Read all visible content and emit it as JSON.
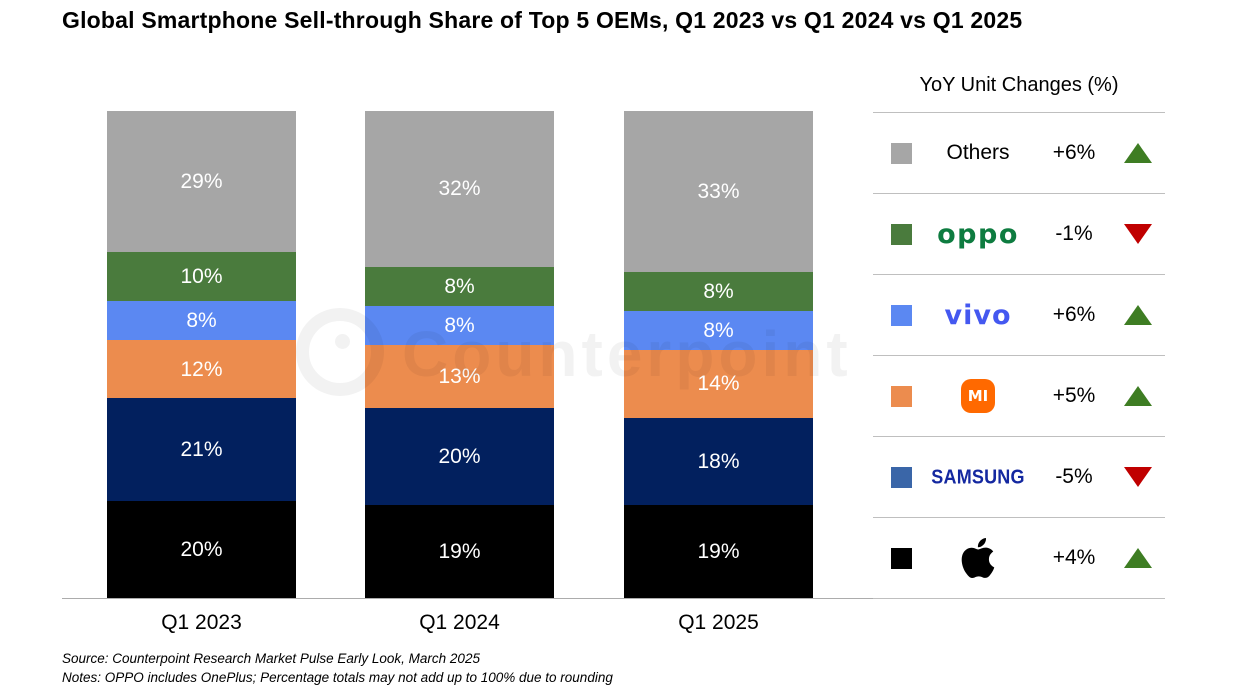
{
  "title": "Global Smartphone Sell-through Share of Top 5 OEMs, Q1 2023 vs Q1 2024 vs Q1 2025",
  "watermark": "Counterpoint",
  "footnotes": [
    "Source: Counterpoint Research Market Pulse Early Look, March 2025",
    "Notes: OPPO includes OnePlus; Percentage totals may not add up to 100% due to rounding"
  ],
  "chart_data": {
    "type": "bar",
    "stacked": true,
    "title": "Global Smartphone Sell-through Share of Top 5 OEMs, Q1 2023 vs Q1 2024 vs Q1 2025",
    "categories": [
      "Q1 2023",
      "Q1 2024",
      "Q1 2025"
    ],
    "value_suffix": "%",
    "series_order": "top-to-bottom",
    "series": [
      {
        "name": "Others",
        "color": "#A6A6A6",
        "values": [
          29,
          32,
          33
        ]
      },
      {
        "name": "OPPO",
        "color": "#4A7B3D",
        "values": [
          10,
          8,
          8
        ]
      },
      {
        "name": "vivo",
        "color": "#5B88F2",
        "values": [
          8,
          8,
          8
        ]
      },
      {
        "name": "Xiaomi",
        "color": "#EC8C4E",
        "values": [
          12,
          13,
          14
        ]
      },
      {
        "name": "Samsung",
        "color": "#02205E",
        "values": [
          21,
          20,
          18
        ]
      },
      {
        "name": "Apple",
        "color": "#000000",
        "values": [
          20,
          19,
          19
        ]
      }
    ],
    "axis": {
      "ylim": [
        0,
        100
      ],
      "y_axis_hidden": true,
      "gridlines": false
    },
    "legend_position": "right"
  },
  "legend": {
    "title": "YoY Unit Changes (%)",
    "rows": [
      {
        "brand": "Others",
        "logo": "text",
        "label": "Others",
        "swatch": "#A6A6A6",
        "change": "+6%",
        "direction": "up"
      },
      {
        "brand": "OPPO",
        "logo": "oppo",
        "logo_text": "oppo",
        "swatch": "#4A7B3D",
        "change": "-1%",
        "direction": "down"
      },
      {
        "brand": "vivo",
        "logo": "vivo",
        "logo_text": "vivo",
        "swatch": "#5B88F2",
        "change": "+6%",
        "direction": "up"
      },
      {
        "brand": "Xiaomi",
        "logo": "mi",
        "logo_text": "MI",
        "swatch": "#EC8C4E",
        "change": "+5%",
        "direction": "up"
      },
      {
        "brand": "Samsung",
        "logo": "samsung",
        "logo_text": "SAMSUNG",
        "swatch": "#3A66A8",
        "change": "-5%",
        "direction": "down"
      },
      {
        "brand": "Apple",
        "logo": "apple",
        "swatch": "#000000",
        "change": "+4%",
        "direction": "up"
      }
    ],
    "colors": {
      "up": "#3E7D23",
      "down": "#C00000",
      "oppo_green": "#0E7C40",
      "vivo_blue": "#4458F0",
      "mi_orange": "#FF6900",
      "samsung_blue": "#1428A0",
      "divider": "#BFBFBF"
    }
  }
}
